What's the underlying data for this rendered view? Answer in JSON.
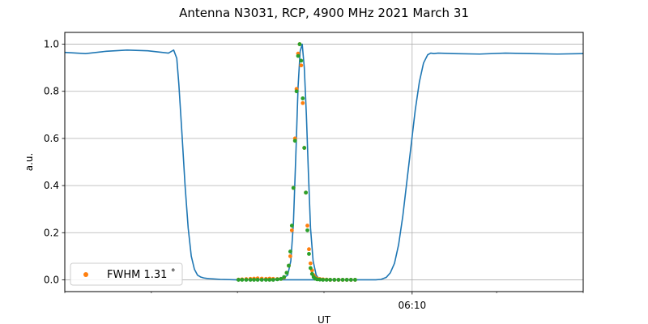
{
  "chart_data": {
    "type": "line",
    "title": "Antenna N3031, RCP, 4900 MHz 2021 March 31",
    "xlabel": "UT",
    "ylabel": "a.u.",
    "xlim": [
      0,
      100
    ],
    "ylim": [
      -0.05,
      1.05
    ],
    "y_ticks": [
      0.0,
      0.2,
      0.4,
      0.6,
      0.8,
      1.0
    ],
    "x_major_ticks": [
      {
        "x": 67,
        "label": "06:10"
      }
    ],
    "x_minor_ticks": [
      0,
      16.7,
      33.3,
      50,
      83.3,
      100
    ],
    "grid": true,
    "legend": {
      "position": "lower-left",
      "entries": [
        "FWHM 1.31$^\\circ$"
      ],
      "display_text": "FWHM 1.31 ˚"
    },
    "colors": {
      "main": "#1f77b4",
      "scatter": "#ff7f0e",
      "fit": "#2ca02c"
    },
    "series": [
      {
        "style": "line",
        "color": "#1f77b4",
        "x": [
          0,
          4,
          8,
          12,
          16,
          20,
          21,
          21.6,
          22,
          22.6,
          23.2,
          23.8,
          24.4,
          25,
          25.6,
          26.2,
          26.8,
          27.4,
          28,
          30,
          33,
          40,
          50,
          60,
          61,
          62,
          62.8,
          63.6,
          64.4,
          65.2,
          66,
          66.8,
          67.6,
          68.4,
          69.2,
          70,
          70.6,
          71.2,
          72,
          75,
          80,
          85,
          90,
          95,
          100
        ],
        "y": [
          0.965,
          0.96,
          0.97,
          0.975,
          0.972,
          0.962,
          0.975,
          0.94,
          0.83,
          0.62,
          0.4,
          0.22,
          0.1,
          0.045,
          0.02,
          0.012,
          0.008,
          0.006,
          0.005,
          0.002,
          0.0,
          0.0,
          0.0,
          0.0,
          0.002,
          0.01,
          0.03,
          0.07,
          0.15,
          0.27,
          0.42,
          0.57,
          0.72,
          0.84,
          0.92,
          0.955,
          0.962,
          0.96,
          0.962,
          0.96,
          0.958,
          0.962,
          0.96,
          0.958,
          0.96
        ]
      },
      {
        "style": "line",
        "color": "#1f77b4",
        "x": [
          33,
          40,
          42,
          43,
          43.6,
          44.1,
          44.6,
          45,
          45.4,
          45.8,
          46.2,
          46.6,
          47,
          47.4,
          47.9,
          48.5,
          49,
          50,
          56
        ],
        "y": [
          0.0,
          0.002,
          0.005,
          0.02,
          0.08,
          0.24,
          0.55,
          0.82,
          0.97,
          1.0,
          0.9,
          0.7,
          0.45,
          0.22,
          0.08,
          0.02,
          0.005,
          0.0,
          0.0
        ]
      },
      {
        "name": "FWHM 1.31$^\\circ$",
        "style": "scatter",
        "color": "#ff7f0e",
        "x": [
          33.5,
          34.2,
          35,
          35.8,
          36.5,
          37.2,
          38,
          38.8,
          39.5,
          40.2,
          41,
          41.7,
          42.3,
          42.8,
          43.2,
          43.5,
          43.8,
          44.1,
          44.4,
          44.7,
          45,
          45.3,
          45.6,
          45.9,
          46.2,
          46.5,
          46.8,
          47.1,
          47.4,
          47.7,
          48,
          48.3,
          48.7,
          49.2,
          49.8,
          50.5,
          51.2,
          52,
          52.8,
          53.6,
          54.4,
          55.2,
          56
        ],
        "y": [
          0.001,
          0.002,
          0.003,
          0.004,
          0.005,
          0.006,
          0.005,
          0.004,
          0.005,
          0.004,
          0.003,
          0.004,
          0.01,
          0.03,
          0.06,
          0.1,
          0.21,
          0.39,
          0.6,
          0.81,
          0.96,
          1.0,
          0.91,
          0.75,
          0.56,
          0.37,
          0.23,
          0.13,
          0.07,
          0.04,
          0.02,
          0.01,
          0.005,
          0.003,
          0.002,
          0.001,
          0.0,
          0.0,
          0.0,
          0.0,
          0.0,
          0.0,
          0.0
        ]
      },
      {
        "style": "scatter",
        "color": "#2ca02c",
        "x": [
          33.5,
          34.2,
          35,
          35.8,
          36.5,
          37.2,
          38,
          38.8,
          39.5,
          40.2,
          41,
          41.7,
          42.3,
          42.8,
          43.2,
          43.5,
          43.8,
          44.1,
          44.4,
          44.7,
          45,
          45.3,
          45.6,
          45.9,
          46.2,
          46.5,
          46.8,
          47.1,
          47.4,
          47.7,
          48,
          48.3,
          48.7,
          49.2,
          49.8,
          50.5,
          51.2,
          52,
          52.8,
          53.6,
          54.4,
          55.2,
          56
        ],
        "y": [
          0.0,
          0.0,
          0.0,
          0.0,
          0.0,
          0.0,
          0.0,
          0.0,
          0.0,
          0.0,
          0.002,
          0.004,
          0.012,
          0.03,
          0.06,
          0.12,
          0.23,
          0.39,
          0.59,
          0.8,
          0.95,
          1.0,
          0.93,
          0.77,
          0.56,
          0.37,
          0.21,
          0.11,
          0.05,
          0.025,
          0.012,
          0.005,
          0.002,
          0.001,
          0.0,
          0.0,
          0.0,
          0.0,
          0.0,
          0.0,
          0.0,
          0.0,
          0.0
        ]
      }
    ]
  }
}
